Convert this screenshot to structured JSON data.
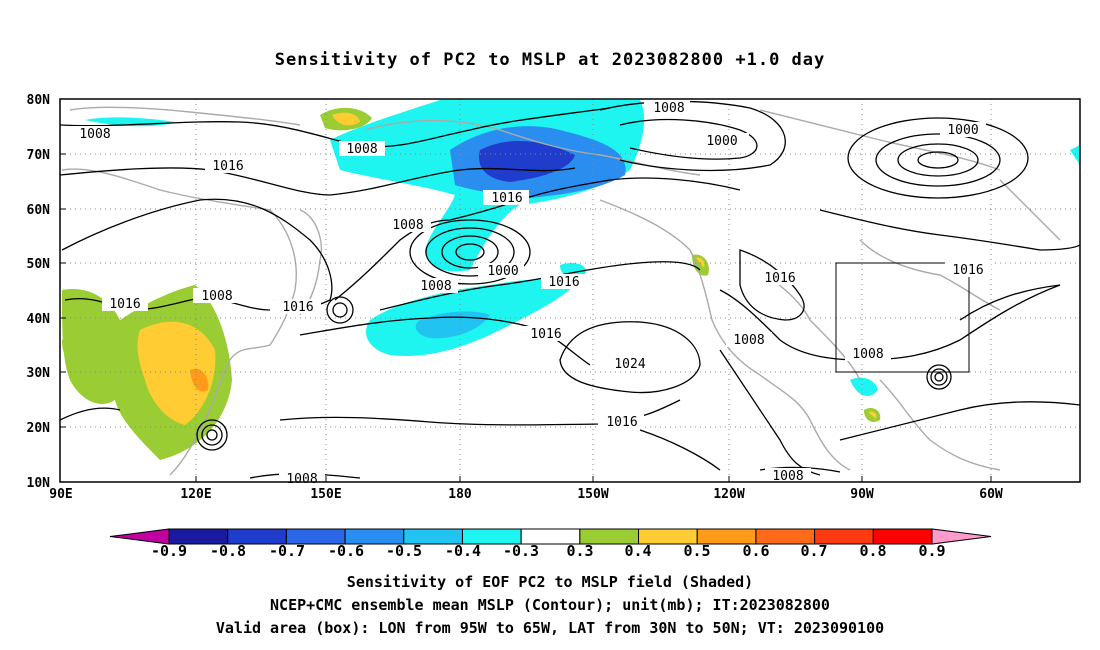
{
  "title": "Sensitivity of PC2 to MSLP at 2023082800 +1.0 day",
  "map": {
    "lat_labels": [
      "80N",
      "70N",
      "60N",
      "50N",
      "40N",
      "30N",
      "20N",
      "10N"
    ],
    "lon_labels": [
      "90E",
      "120E",
      "150E",
      "180",
      "150W",
      "120W",
      "90W",
      "60W"
    ],
    "lon_range": "90E to 40W",
    "lat_range": "10N to 80N",
    "contour_unit": "mb",
    "contour_labels": [
      "1008",
      "1000",
      "1016",
      "1008",
      "1008",
      "1016",
      "1016",
      "1024",
      "1008",
      "1016",
      "1008",
      "1008",
      "1000",
      "1008",
      "1016",
      "1008",
      "1016",
      "1016",
      "1008",
      "1008",
      "1016",
      "1000",
      "1016"
    ],
    "valid_box": {
      "lon_west": "95W",
      "lon_east": "65W",
      "lat_south": "30N",
      "lat_north": "50N"
    }
  },
  "colorbar": {
    "labels": [
      "-0.9",
      "-0.8",
      "-0.7",
      "-0.6",
      "-0.5",
      "-0.4",
      "-0.3",
      "0.3",
      "0.4",
      "0.5",
      "0.6",
      "0.7",
      "0.8",
      "0.9"
    ],
    "colors": [
      "#c000a0",
      "#1a1a9e",
      "#1f3ccc",
      "#2a66e6",
      "#2a8ef0",
      "#21c4f0",
      "#1ef5f0",
      "#ffffff",
      "#9acc33",
      "#ffcc33",
      "#ff9a1a",
      "#ff6a1a",
      "#ff3a10",
      "#ff0000",
      "#ff9acc"
    ]
  },
  "captions": {
    "line1": "Sensitivity of EOF PC2 to MSLP field (Shaded)",
    "line2": "NCEP+CMC ensemble mean MSLP (Contour); unit(mb); IT:2023082800",
    "line3": "Valid area (box): LON from 95W to 65W, LAT from 30N to 50N; VT: 2023090100"
  }
}
